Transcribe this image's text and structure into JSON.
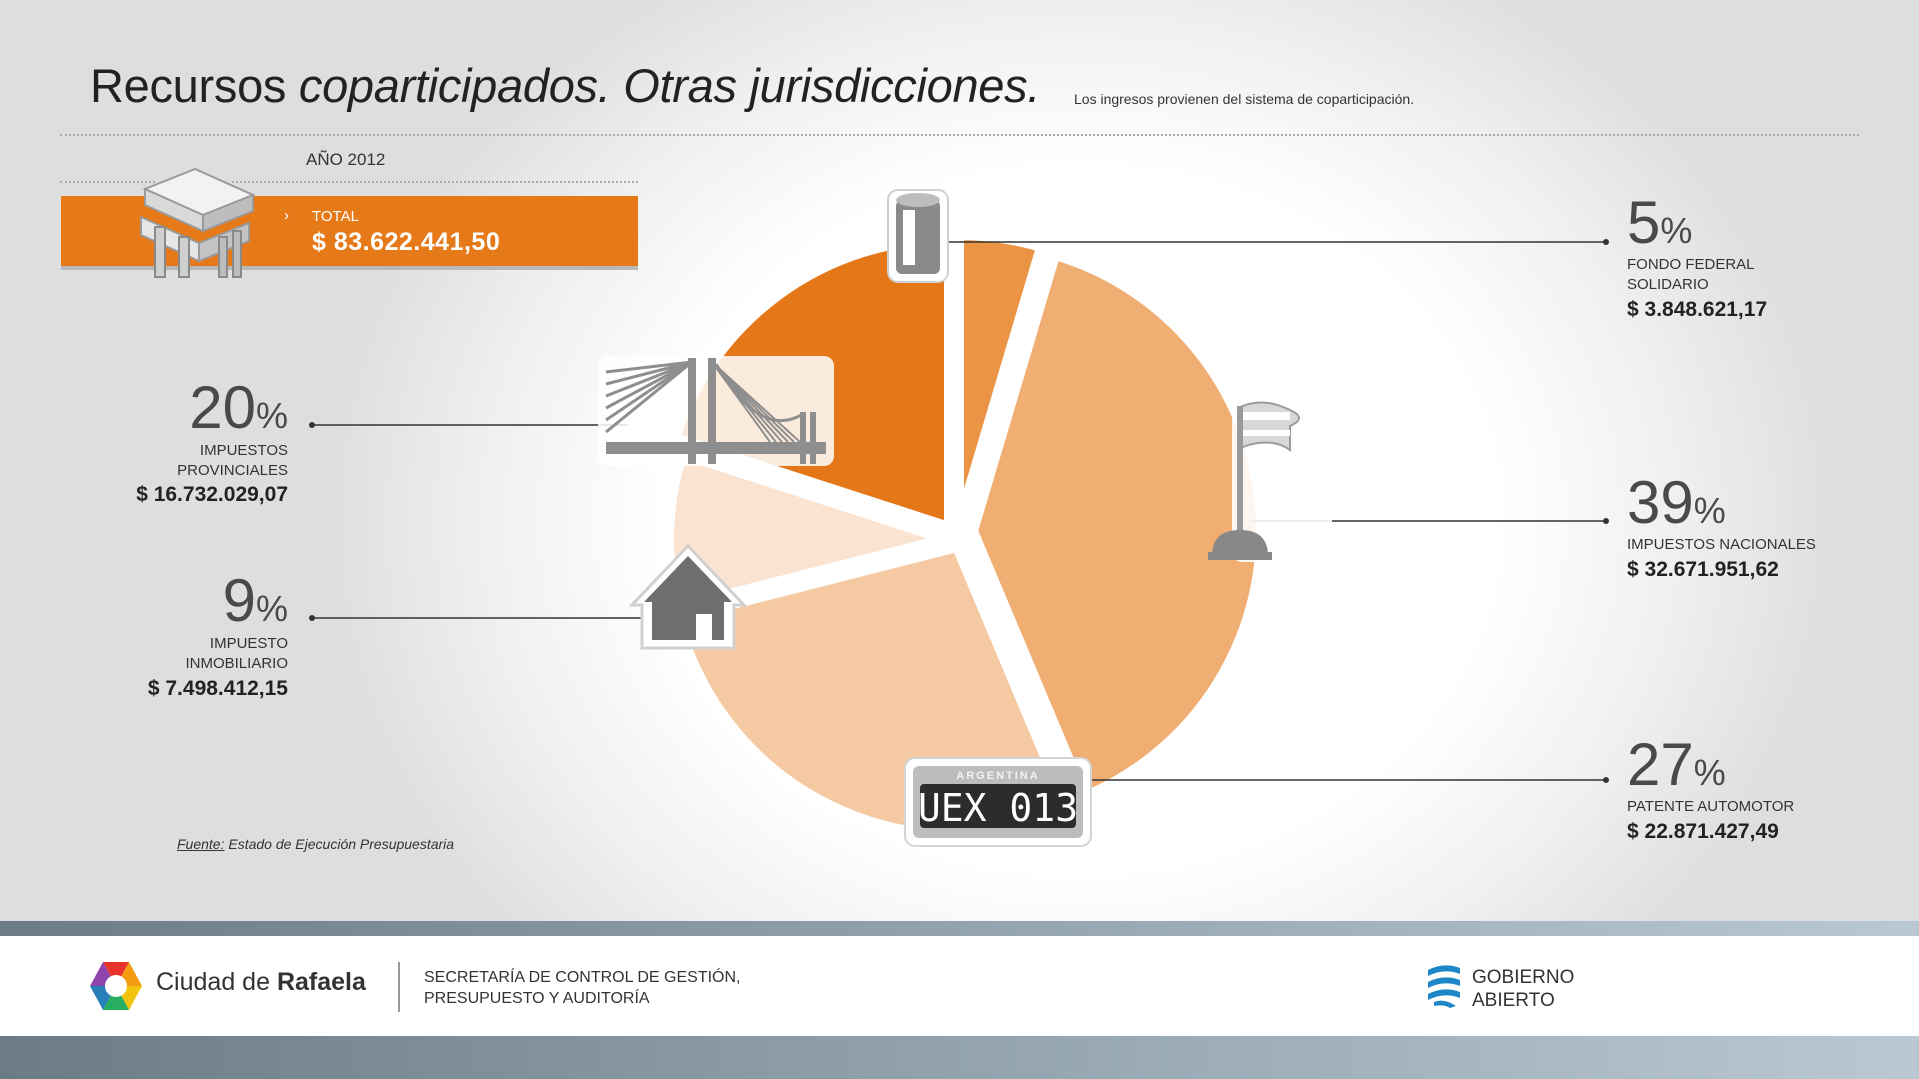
{
  "header": {
    "title_normal": "Recursos ",
    "title_italic": "coparticipados. Otras jurisdicciones.",
    "subtitle": "Los ingresos provienen del sistema de coparticipación."
  },
  "summary": {
    "year": "AÑO 2012",
    "total_label": "TOTAL",
    "total_value": "$ 83.622.441,50"
  },
  "chart_data": {
    "type": "pie",
    "categories": [
      "FONDO FEDERAL SOLIDARIO",
      "IMPUESTOS NACIONALES",
      "PATENTE AUTOMOTOR",
      "IMPUESTO INMOBILIARIO",
      "IMPUESTOS PROVINCIALES"
    ],
    "values": [
      3848621.17,
      32671951.62,
      22871427.49,
      7498412.15,
      16732029.07
    ],
    "percents": [
      5,
      39,
      27,
      9,
      20
    ],
    "colors": [
      "#ec9445",
      "#f0ae72",
      "#f5c9a2",
      "#fbe3d1",
      "#e47718"
    ],
    "slices": [
      {
        "pct": "5",
        "name_lines": [
          "FONDO FEDERAL",
          "SOLIDARIO"
        ],
        "amount": "$ 3.848.621,17",
        "icon": "fuel-barrel-icon"
      },
      {
        "pct": "39",
        "name_lines": [
          "IMPUESTOS NACIONALES"
        ],
        "amount": "$ 32.671.951,62",
        "icon": "flag-icon"
      },
      {
        "pct": "27",
        "name_lines": [
          "PATENTE AUTOMOTOR"
        ],
        "amount": "$ 22.871.427,49",
        "icon": "license-plate-icon"
      },
      {
        "pct": "9",
        "name_lines": [
          "IMPUESTO",
          "INMOBILIARIO"
        ],
        "amount": "$ 7.498.412,15",
        "icon": "house-icon"
      },
      {
        "pct": "20",
        "name_lines": [
          "IMPUESTOS",
          "PROVINCIALES"
        ],
        "amount": "$ 16.732.029,07",
        "icon": "bridge-icon"
      }
    ],
    "percent_symbol": "%",
    "plate": {
      "country": "ARGENTINA",
      "number": "UEX 013"
    }
  },
  "source": {
    "label": "Fuente:",
    "text": " Estado de Ejecución Presupuestaria"
  },
  "footer": {
    "city_normal": "Ciudad de ",
    "city_bold": "Rafaela",
    "secretaria_line1": "SECRETARÍA DE CONTROL DE GESTIÓN,",
    "secretaria_line2": "PRESUPUESTO Y AUDITORÍA",
    "gob_line1": "GOBIERNO",
    "gob_line2": "ABIERTO"
  }
}
